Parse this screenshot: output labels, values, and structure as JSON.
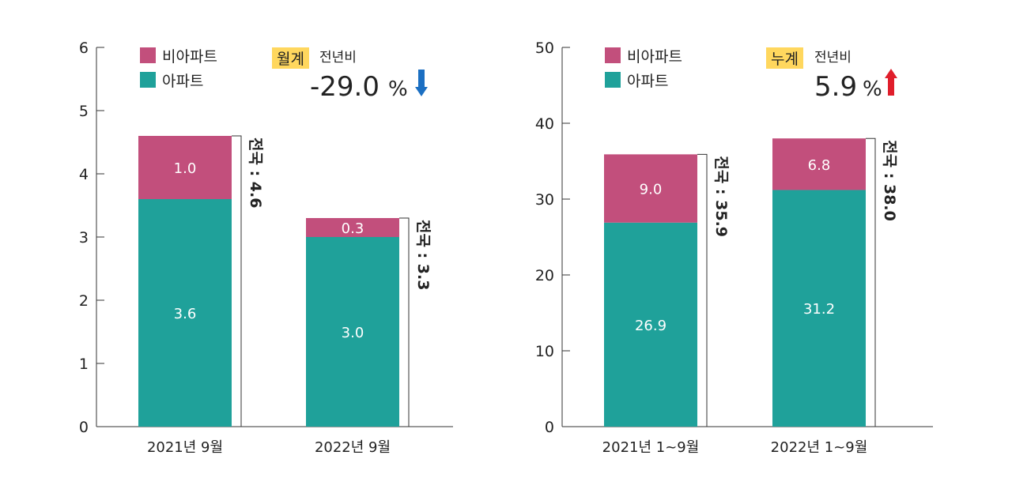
{
  "colors": {
    "teal": "#1fa19a",
    "magenta": "#c24f7c",
    "axis": "#333333",
    "text": "#222222",
    "badge": "#ffd75e",
    "down": "#1b6fc2",
    "up": "#e01e2b"
  },
  "chart_data": [
    {
      "type": "bar",
      "stacked": true,
      "categories": [
        "2021년 9월",
        "2022년 9월"
      ],
      "series": [
        {
          "name": "아파트",
          "values": [
            3.6,
            3.0
          ],
          "labels": [
            "3.6",
            "3.0"
          ]
        },
        {
          "name": "비아파트",
          "values": [
            1.0,
            0.3
          ],
          "labels": [
            "1.0",
            "0.3"
          ]
        }
      ],
      "totals": [
        4.6,
        3.3
      ],
      "total_labels": [
        "전국 : 4.6",
        "전국 : 3.3"
      ],
      "ylim": [
        0,
        6
      ],
      "yticks": [
        "0",
        "1",
        "2",
        "3",
        "4",
        "5",
        "6"
      ],
      "legend": [
        "비아파트",
        "아파트"
      ],
      "badge": "월계",
      "compare_label": "전년비",
      "change_value": "-29.0",
      "change_unit": "%",
      "change_direction": "down"
    },
    {
      "type": "bar",
      "stacked": true,
      "categories": [
        "2021년 1~9월",
        "2022년 1~9월"
      ],
      "series": [
        {
          "name": "아파트",
          "values": [
            26.9,
            31.2
          ],
          "labels": [
            "26.9",
            "31.2"
          ]
        },
        {
          "name": "비아파트",
          "values": [
            9.0,
            6.8
          ],
          "labels": [
            "9.0",
            "6.8"
          ]
        }
      ],
      "totals": [
        35.9,
        38.0
      ],
      "total_labels": [
        "전국 : 35.9",
        "전국 : 38.0"
      ],
      "ylim": [
        0,
        50
      ],
      "yticks": [
        "0",
        "10",
        "20",
        "30",
        "40",
        "50"
      ],
      "legend": [
        "비아파트",
        "아파트"
      ],
      "badge": "누계",
      "compare_label": "전년비",
      "change_value": "5.9",
      "change_unit": "%",
      "change_direction": "up"
    }
  ]
}
